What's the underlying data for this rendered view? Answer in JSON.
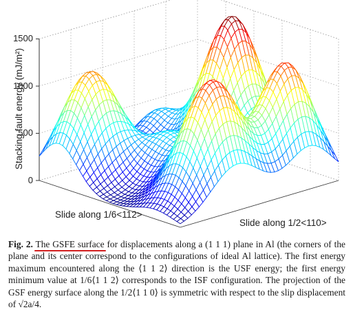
{
  "figure": {
    "ylabel": "Stacking fault energy (mJ/m²)",
    "zticks": [
      "0",
      "500",
      "1000",
      "1500"
    ],
    "xlabel_left": "Slide along 1/6<112>",
    "xlabel_right": "Slide along 1/2<110>"
  },
  "caption": {
    "label": "Fig. 2.",
    "highlight": "The GSFE surface",
    "text": " for displacements along a (1 1 1) plane in Al (the corners of the plane and its center correspond to the configurations of ideal Al lattice). The first energy maximum encountered along the ⟨1 1 2⟩ direction is the USF energy; the first energy minimum value at 1/6⟨1 1 2⟩ corresponds to the ISF configuration. The projection of the GSF energy surface along the 1/2⟨1 1 0⟩ is symmetric with respect to the slip displacement of √2a/4."
  },
  "chart_data": {
    "type": "surface",
    "zlim": [
      0,
      1500
    ],
    "zticks": [
      0,
      500,
      1000,
      1500
    ],
    "zlabel": "Stacking fault energy (mJ/m²)",
    "xlabel": "Slide along 1/6<112>",
    "ylabel": "Slide along 1/2<110>",
    "peaks": [
      {
        "location": "left",
        "value": 1120
      },
      {
        "location": "front",
        "value": 1280
      },
      {
        "location": "back-right",
        "value": 1510
      },
      {
        "location": "right",
        "value": 1230
      }
    ],
    "colormap": "jet"
  }
}
